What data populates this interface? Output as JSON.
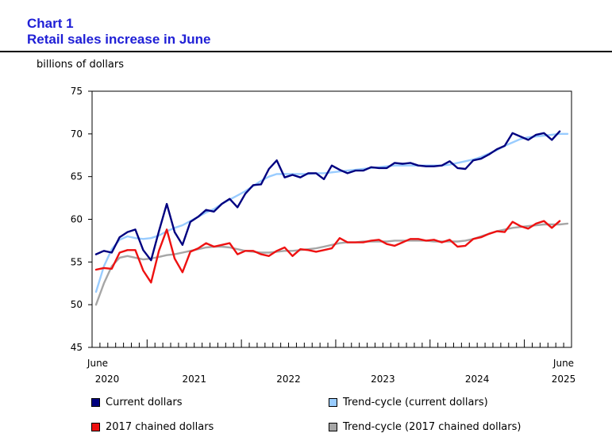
{
  "chart_data": {
    "type": "line",
    "title": "Chart 1",
    "subtitle": "Retail sales increase in June",
    "ylabel": "billions of dollars",
    "xlabel": "",
    "ylim": [
      45,
      75
    ],
    "y_ticks": [
      45,
      50,
      55,
      60,
      65,
      70,
      75
    ],
    "grid": false,
    "legend_position": "bottom",
    "start_label": {
      "month": "June",
      "year": "2020"
    },
    "end_label": {
      "month": "June",
      "year": "2025"
    },
    "year_labels": [
      "2021",
      "2022",
      "2023",
      "2024"
    ],
    "x": [
      "2020-06",
      "2020-07",
      "2020-08",
      "2020-09",
      "2020-10",
      "2020-11",
      "2020-12",
      "2021-01",
      "2021-02",
      "2021-03",
      "2021-04",
      "2021-05",
      "2021-06",
      "2021-07",
      "2021-08",
      "2021-09",
      "2021-10",
      "2021-11",
      "2021-12",
      "2022-01",
      "2022-02",
      "2022-03",
      "2022-04",
      "2022-05",
      "2022-06",
      "2022-07",
      "2022-08",
      "2022-09",
      "2022-10",
      "2022-11",
      "2022-12",
      "2023-01",
      "2023-02",
      "2023-03",
      "2023-04",
      "2023-05",
      "2023-06",
      "2023-07",
      "2023-08",
      "2023-09",
      "2023-10",
      "2023-11",
      "2023-12",
      "2024-01",
      "2024-02",
      "2024-03",
      "2024-04",
      "2024-05",
      "2024-06",
      "2024-07",
      "2024-08",
      "2024-09",
      "2024-10",
      "2024-11",
      "2024-12",
      "2025-01",
      "2025-02",
      "2025-03",
      "2025-04",
      "2025-05",
      "2025-06"
    ],
    "series": [
      {
        "name": "Current dollars",
        "color": "#000080",
        "style": "solid",
        "values": [
          55.9,
          56.3,
          56.1,
          57.9,
          58.5,
          58.8,
          56.4,
          55.2,
          58.6,
          61.8,
          58.5,
          57.0,
          59.7,
          60.3,
          61.1,
          60.9,
          61.8,
          62.4,
          61.4,
          63.0,
          64.0,
          64.1,
          65.9,
          66.9,
          64.9,
          65.2,
          64.9,
          65.4,
          65.4,
          64.7,
          66.3,
          65.8,
          65.4,
          65.7,
          65.7,
          66.1,
          66.0,
          66.0,
          66.6,
          66.5,
          66.6,
          66.3,
          66.2,
          66.2,
          66.3,
          66.8,
          66.0,
          65.9,
          66.9,
          67.1,
          67.6,
          68.2,
          68.6,
          70.1,
          69.7,
          69.3,
          69.9,
          70.1,
          69.3,
          70.3,
          null
        ]
      },
      {
        "name": "Trend-cycle (current dollars)",
        "color": "#99ccff",
        "style": "solid",
        "values": [
          51.5,
          54.5,
          56.5,
          57.6,
          58.0,
          57.8,
          57.7,
          57.8,
          58.1,
          58.6,
          59.0,
          59.3,
          59.8,
          60.3,
          60.8,
          61.2,
          61.8,
          62.3,
          62.8,
          63.3,
          63.9,
          64.5,
          65.0,
          65.3,
          65.3,
          65.3,
          65.3,
          65.3,
          65.4,
          65.4,
          65.5,
          65.6,
          65.7,
          65.8,
          65.9,
          66.0,
          66.1,
          66.2,
          66.3,
          66.3,
          66.3,
          66.3,
          66.3,
          66.3,
          66.3,
          66.4,
          66.6,
          66.8,
          67.0,
          67.3,
          67.7,
          68.1,
          68.6,
          69.0,
          69.4,
          69.6,
          69.7,
          69.8,
          69.9,
          70.0,
          70.0
        ]
      },
      {
        "name": "2017 chained dollars",
        "color": "#ee1111",
        "style": "solid",
        "values": [
          54.1,
          54.3,
          54.2,
          56.1,
          56.4,
          56.4,
          54.0,
          52.6,
          56.3,
          58.8,
          55.4,
          53.8,
          56.2,
          56.6,
          57.2,
          56.8,
          57.0,
          57.2,
          55.9,
          56.3,
          56.3,
          55.9,
          55.7,
          56.3,
          56.7,
          55.7,
          56.5,
          56.4,
          56.2,
          56.4,
          56.6,
          57.8,
          57.3,
          57.3,
          57.3,
          57.5,
          57.6,
          57.1,
          56.9,
          57.3,
          57.7,
          57.7,
          57.5,
          57.6,
          57.3,
          57.6,
          56.8,
          56.9,
          57.7,
          57.9,
          58.3,
          58.6,
          58.5,
          59.7,
          59.2,
          58.9,
          59.5,
          59.8,
          59.0,
          59.8,
          null
        ]
      },
      {
        "name": "Trend-cycle (2017 chained dollars)",
        "color": "#a6a6a6",
        "style": "solid",
        "values": [
          50.0,
          52.5,
          54.5,
          55.5,
          55.7,
          55.5,
          55.3,
          55.4,
          55.6,
          55.8,
          55.9,
          56.1,
          56.3,
          56.5,
          56.7,
          56.8,
          56.8,
          56.7,
          56.5,
          56.3,
          56.2,
          56.1,
          56.1,
          56.2,
          56.3,
          56.3,
          56.4,
          56.5,
          56.6,
          56.8,
          57.0,
          57.2,
          57.3,
          57.3,
          57.4,
          57.4,
          57.4,
          57.4,
          57.5,
          57.5,
          57.5,
          57.5,
          57.5,
          57.4,
          57.4,
          57.4,
          57.4,
          57.5,
          57.7,
          58.0,
          58.3,
          58.6,
          58.8,
          59.0,
          59.1,
          59.2,
          59.3,
          59.4,
          59.4,
          59.4,
          59.5
        ]
      }
    ]
  }
}
